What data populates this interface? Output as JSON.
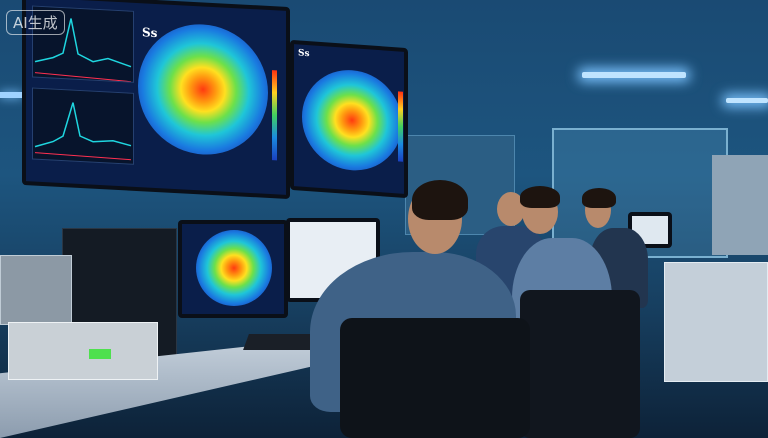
{
  "watermark": "AI生成",
  "screen_labels": {
    "left": "Ss",
    "right": "Ss"
  },
  "colors": {
    "accent": "#1fd6e0",
    "heat_hot": "#ff3a10",
    "room": "#1d557f"
  }
}
